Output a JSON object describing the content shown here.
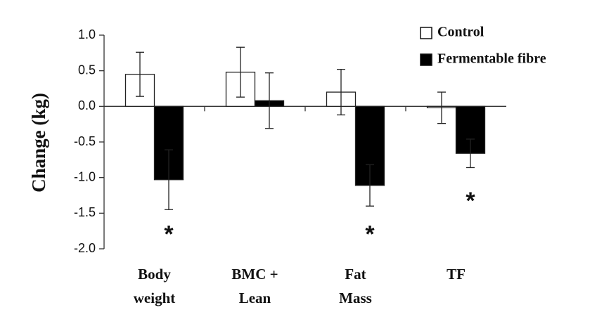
{
  "chart_data": {
    "type": "bar",
    "title": "",
    "xlabel": "",
    "ylabel": "Change (kg)",
    "ylim": [
      -2.0,
      1.0
    ],
    "yticks": [
      "1.0",
      "0.5",
      "0.0",
      "-0.5",
      "-1.0",
      "-1.5",
      "-2.0"
    ],
    "ytick_values": [
      1.0,
      0.5,
      0.0,
      -0.5,
      -1.0,
      -1.5,
      -2.0
    ],
    "categories": [
      [
        "Body",
        "weight"
      ],
      [
        "BMC +",
        "Lean"
      ],
      [
        "Fat",
        "Mass"
      ],
      [
        "TF"
      ]
    ],
    "series": [
      {
        "name": "Control",
        "color": "#ffffff",
        "values": [
          0.45,
          0.48,
          0.2,
          -0.02
        ],
        "errors": [
          0.31,
          0.35,
          0.32,
          0.22
        ]
      },
      {
        "name": "Fermentable fibre",
        "color": "#000000",
        "values": [
          -1.03,
          0.08,
          -1.11,
          -0.66
        ],
        "errors": [
          0.42,
          0.39,
          0.29,
          0.2
        ]
      }
    ],
    "significance": [
      {
        "category": 0,
        "symbol": "*",
        "y": -1.82
      },
      {
        "category": 2,
        "symbol": "*",
        "y": -1.82
      },
      {
        "category": 3,
        "symbol": "*",
        "y": -1.35
      }
    ],
    "legend": [
      "Control",
      "Fermentable fibre"
    ],
    "legend_position": "top-right",
    "grid": false
  }
}
